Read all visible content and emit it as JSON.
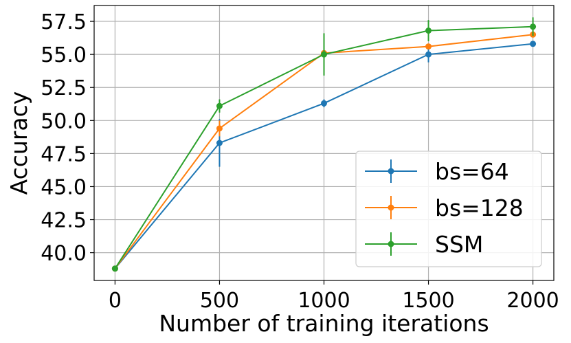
{
  "chart_data": {
    "type": "line",
    "xlabel": "Number of training iterations",
    "ylabel": "Accuracy",
    "x": [
      0,
      500,
      1000,
      1500,
      2000
    ],
    "x_ticks": [
      "0",
      "500",
      "1000",
      "1500",
      "2000"
    ],
    "y_ticks": [
      "40.0",
      "42.5",
      "45.0",
      "47.5",
      "50.0",
      "52.5",
      "55.0",
      "57.5"
    ],
    "y_tick_values": [
      40.0,
      42.5,
      45.0,
      47.5,
      50.0,
      52.5,
      55.0,
      57.5
    ],
    "xlim": [
      -100,
      2100
    ],
    "ylim": [
      37.9,
      58.7
    ],
    "grid": true,
    "legend_position": "lower-right",
    "series": [
      {
        "name": "bs=64",
        "color": "#1f77b4",
        "values": [
          38.8,
          48.3,
          51.3,
          55.0,
          55.8
        ],
        "errors": [
          0.1,
          1.8,
          0.3,
          0.6,
          0.2
        ]
      },
      {
        "name": "bs=128",
        "color": "#ff7f0e",
        "values": [
          38.8,
          49.4,
          55.1,
          55.6,
          56.5
        ],
        "errors": [
          0.1,
          0.6,
          0.2,
          0.2,
          0.2
        ]
      },
      {
        "name": "SSM",
        "color": "#2ca02c",
        "values": [
          38.8,
          51.1,
          55.0,
          56.8,
          57.1
        ],
        "errors": [
          0.1,
          0.5,
          1.6,
          0.8,
          0.7
        ]
      }
    ]
  }
}
